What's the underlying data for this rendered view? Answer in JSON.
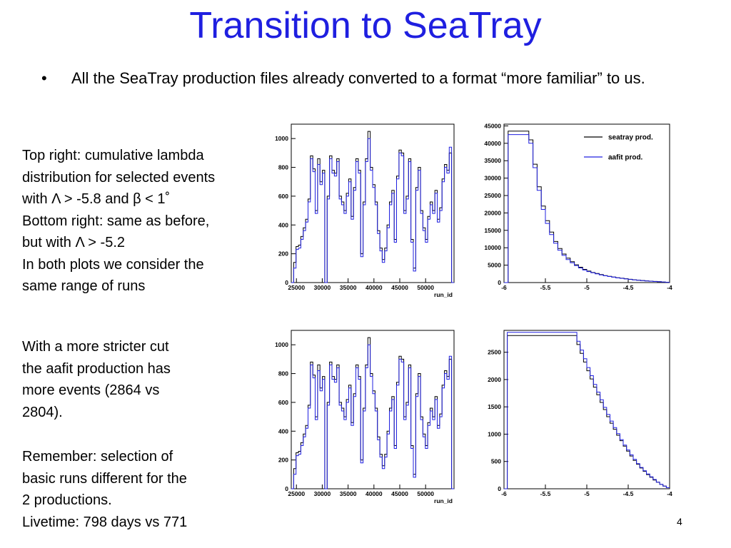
{
  "slide": {
    "title": "Transition to SeaTray",
    "bullet": "All the SeaTray production files already converted to a format “more familiar” to us.",
    "note_top": [
      "Top right: cumulative lambda",
      "distribution for selected events",
      "with Λ > -5.8 and β < 1˚",
      "Bottom right: same as before,",
      "but with Λ > -5.2",
      "In both plots we consider the",
      "same range of runs"
    ],
    "note_bottom_1": [
      "With a more stricter cut",
      "the aafit production has",
      "more events (2864 vs",
      "2804)."
    ],
    "note_bottom_2": [
      "Remember: selection of",
      "basic runs different for the",
      "2 productions.",
      "Livetime: 798 days vs 771"
    ],
    "page_number": "4"
  },
  "colors": {
    "title": "#1f1fe0",
    "seatray": "#000000",
    "aafit": "#2020e0"
  },
  "chart_data": [
    {
      "type": "line",
      "id": "top-left",
      "xlabel": "run_id",
      "ylabel": "",
      "xlim": [
        24000,
        55500
      ],
      "ylim": [
        0,
        1100
      ],
      "xticks": [
        "25000",
        "30000",
        "35000",
        "40000",
        "45000",
        "50000"
      ],
      "xtick_values": [
        25000,
        30000,
        35000,
        40000,
        45000,
        50000
      ],
      "yticks": [
        "0",
        "200",
        "400",
        "600",
        "800",
        "1000"
      ],
      "ytick_values": [
        0,
        200,
        400,
        600,
        800,
        1000
      ],
      "series": [
        {
          "values": [
            0,
            140,
            250,
            260,
            320,
            380,
            440,
            580,
            880,
            790,
            500,
            860,
            700,
            780,
            0,
            600,
            880,
            780,
            760,
            860,
            600,
            560,
            500,
            620,
            720,
            460,
            660,
            860,
            780,
            200,
            560,
            860,
            1050,
            800,
            680,
            560,
            360,
            240,
            160,
            240,
            400,
            560,
            640,
            300,
            740,
            920,
            900,
            500,
            600,
            860,
            300,
            100,
            660,
            800,
            500,
            380,
            300,
            460,
            560,
            500,
            640,
            440,
            520,
            720,
            820,
            780,
            900,
            0
          ]
        },
        {
          "values": [
            0,
            100,
            230,
            240,
            300,
            360,
            420,
            560,
            860,
            770,
            480,
            820,
            680,
            760,
            0,
            580,
            860,
            760,
            740,
            840,
            580,
            540,
            480,
            600,
            700,
            440,
            640,
            840,
            760,
            180,
            540,
            840,
            1000,
            780,
            660,
            540,
            340,
            220,
            140,
            220,
            380,
            540,
            620,
            280,
            720,
            900,
            880,
            480,
            580,
            840,
            280,
            80,
            640,
            780,
            480,
            360,
            280,
            440,
            540,
            480,
            620,
            420,
            500,
            700,
            800,
            760,
            940,
            0
          ]
        }
      ]
    },
    {
      "type": "line",
      "id": "top-right",
      "xlabel": "",
      "ylabel": "",
      "xlim": [
        -6,
        -4
      ],
      "ylim": [
        0,
        45500
      ],
      "xticks": [
        "-6",
        "-5.5",
        "-5",
        "-4.5",
        "-4"
      ],
      "xtick_values": [
        -6,
        -5.5,
        -5,
        -4.5,
        -4
      ],
      "yticks": [
        "0",
        "5000",
        "10000",
        "15000",
        "20000",
        "25000",
        "30000",
        "35000",
        "40000",
        "45000"
      ],
      "ytick_values": [
        0,
        5000,
        10000,
        15000,
        20000,
        25000,
        30000,
        35000,
        40000,
        45000
      ],
      "legend_position": "top-right",
      "series": [
        {
          "name": "seatray prod.",
          "values": [
            0,
            43500,
            43500,
            43500,
            43500,
            43500,
            41000,
            34000,
            27500,
            22000,
            17800,
            14500,
            11800,
            9800,
            8200,
            7000,
            6000,
            5100,
            4400,
            3800,
            3300,
            2900,
            2600,
            2300,
            2000,
            1800,
            1600,
            1400,
            1250,
            1100,
            950,
            800,
            700,
            600,
            500,
            400,
            320,
            250,
            150,
            100
          ]
        },
        {
          "name": "aafit prod.",
          "values": [
            0,
            42500,
            42500,
            42500,
            42500,
            42500,
            40000,
            33000,
            26500,
            21000,
            17000,
            13800,
            11300,
            9300,
            7800,
            6600,
            5700,
            4900,
            4200,
            3600,
            3150,
            2800,
            2500,
            2200,
            1950,
            1750,
            1550,
            1350,
            1200,
            1050,
            900,
            780,
            680,
            580,
            480,
            390,
            310,
            240,
            140,
            90
          ]
        }
      ]
    },
    {
      "type": "line",
      "id": "bottom-left",
      "xlabel": "run_id",
      "ylabel": "",
      "xlim": [
        24000,
        55500
      ],
      "ylim": [
        0,
        1100
      ],
      "xticks": [
        "25000",
        "30000",
        "35000",
        "40000",
        "45000",
        "50000"
      ],
      "xtick_values": [
        25000,
        30000,
        35000,
        40000,
        45000,
        50000
      ],
      "yticks": [
        "0",
        "200",
        "400",
        "600",
        "800",
        "1000"
      ],
      "ytick_values": [
        0,
        200,
        400,
        600,
        800,
        1000
      ],
      "series": [
        {
          "values": [
            0,
            140,
            250,
            260,
            320,
            380,
            440,
            580,
            880,
            790,
            500,
            860,
            700,
            780,
            0,
            600,
            880,
            780,
            760,
            860,
            600,
            560,
            500,
            620,
            720,
            460,
            660,
            860,
            780,
            200,
            560,
            860,
            1050,
            800,
            680,
            560,
            360,
            240,
            160,
            240,
            400,
            560,
            640,
            300,
            740,
            920,
            900,
            500,
            600,
            860,
            300,
            100,
            660,
            800,
            500,
            380,
            300,
            460,
            560,
            500,
            640,
            440,
            520,
            720,
            820,
            780,
            900,
            0
          ]
        },
        {
          "values": [
            0,
            100,
            230,
            240,
            300,
            360,
            420,
            560,
            860,
            770,
            480,
            820,
            680,
            760,
            0,
            580,
            860,
            760,
            740,
            840,
            580,
            540,
            480,
            600,
            700,
            440,
            640,
            840,
            760,
            180,
            540,
            840,
            1000,
            780,
            660,
            540,
            340,
            220,
            140,
            220,
            380,
            540,
            620,
            280,
            720,
            900,
            880,
            480,
            580,
            840,
            280,
            80,
            640,
            780,
            480,
            360,
            280,
            440,
            540,
            480,
            620,
            420,
            500,
            700,
            800,
            760,
            920,
            0
          ]
        }
      ]
    },
    {
      "type": "line",
      "id": "bottom-right",
      "xlabel": "",
      "ylabel": "",
      "xlim": [
        -6,
        -4
      ],
      "ylim": [
        0,
        2900
      ],
      "xticks": [
        "-6",
        "-5.5",
        "-5",
        "-4.5",
        "-4"
      ],
      "xtick_values": [
        -6,
        -5.5,
        -5,
        -4.5,
        -4
      ],
      "yticks": [
        "0",
        "500",
        "1000",
        "1500",
        "2000",
        "2500"
      ],
      "ytick_values": [
        0,
        500,
        1000,
        1500,
        2000,
        2500
      ],
      "series": [
        {
          "values": [
            0,
            2804,
            2804,
            2804,
            2804,
            2804,
            2804,
            2804,
            2804,
            2804,
            2804,
            2804,
            2804,
            2804,
            2804,
            2804,
            2804,
            2804,
            2804,
            2804,
            2804,
            2804,
            2640,
            2480,
            2320,
            2160,
            2010,
            1860,
            1720,
            1580,
            1450,
            1320,
            1200,
            1090,
            980,
            880,
            780,
            690,
            600,
            520,
            450,
            380,
            320,
            260,
            210,
            160,
            120,
            80,
            50,
            20
          ]
        },
        {
          "values": [
            0,
            2864,
            2864,
            2864,
            2864,
            2864,
            2864,
            2864,
            2864,
            2864,
            2864,
            2864,
            2864,
            2864,
            2864,
            2864,
            2864,
            2864,
            2864,
            2864,
            2864,
            2864,
            2700,
            2540,
            2380,
            2220,
            2070,
            1910,
            1770,
            1630,
            1490,
            1360,
            1240,
            1120,
            1010,
            900,
            800,
            710,
            620,
            540,
            460,
            390,
            330,
            270,
            220,
            170,
            120,
            80,
            50,
            20
          ]
        }
      ]
    }
  ]
}
